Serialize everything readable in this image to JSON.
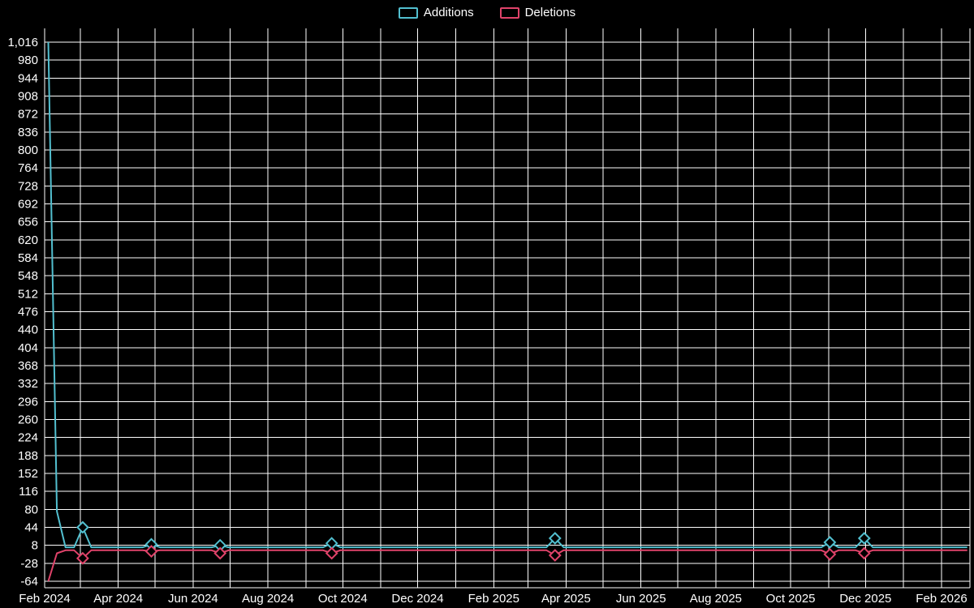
{
  "chart_data": {
    "type": "line",
    "title": "",
    "xlabel": "",
    "ylabel": "",
    "legend_position": "top-center",
    "background_color": "#000000",
    "grid_color": "#ffffff",
    "text_color": "#ffffff",
    "grid": "on",
    "x_gridlines": "monthly",
    "ylim": [
      -77,
      1044
    ],
    "y_ticks": [
      1016,
      980,
      944,
      908,
      872,
      836,
      800,
      764,
      728,
      692,
      656,
      620,
      584,
      548,
      512,
      476,
      440,
      404,
      368,
      332,
      296,
      260,
      224,
      188,
      152,
      116,
      80,
      44,
      8,
      -28,
      -64
    ],
    "x_ticks": [
      {
        "label": "Feb 2024",
        "date": "2024-02-01"
      },
      {
        "label": "Apr 2024",
        "date": "2024-04-01"
      },
      {
        "label": "Jun 2024",
        "date": "2024-06-01"
      },
      {
        "label": "Aug 2024",
        "date": "2024-08-01"
      },
      {
        "label": "Oct 2024",
        "date": "2024-10-01"
      },
      {
        "label": "Dec 2024",
        "date": "2024-12-01"
      },
      {
        "label": "Feb 2025",
        "date": "2025-02-01"
      },
      {
        "label": "Apr 2025",
        "date": "2025-04-01"
      },
      {
        "label": "Jun 2025",
        "date": "2025-06-01"
      },
      {
        "label": "Aug 2025",
        "date": "2025-08-01"
      },
      {
        "label": "Oct 2025",
        "date": "2025-10-01"
      },
      {
        "label": "Dec 2025",
        "date": "2025-12-01"
      },
      {
        "label": "Feb 2026",
        "date": "2026-02-01"
      }
    ],
    "series": [
      {
        "name": "Additions",
        "color": "#52bfcf",
        "points": [
          {
            "d": "2024-02-04",
            "v": 1016
          },
          {
            "d": "2024-02-11",
            "v": 76
          },
          {
            "d": "2024-02-18",
            "v": 4
          },
          {
            "d": "2024-02-25",
            "v": 4
          },
          {
            "d": "2024-03-03",
            "v": 44,
            "m": true
          },
          {
            "d": "2024-03-10",
            "v": 4
          },
          {
            "d": "2024-04-21",
            "v": 4
          },
          {
            "d": "2024-04-28",
            "v": 10,
            "m": true
          },
          {
            "d": "2024-05-05",
            "v": 4
          },
          {
            "d": "2024-06-16",
            "v": 4
          },
          {
            "d": "2024-06-23",
            "v": 8,
            "m": true
          },
          {
            "d": "2024-06-30",
            "v": 4
          },
          {
            "d": "2024-09-15",
            "v": 4
          },
          {
            "d": "2024-09-22",
            "v": 12,
            "m": true
          },
          {
            "d": "2024-09-29",
            "v": 4
          },
          {
            "d": "2025-03-16",
            "v": 4
          },
          {
            "d": "2025-03-23",
            "v": 22,
            "m": true
          },
          {
            "d": "2025-03-30",
            "v": 4
          },
          {
            "d": "2025-10-26",
            "v": 4
          },
          {
            "d": "2025-11-02",
            "v": 14,
            "m": true
          },
          {
            "d": "2025-11-09",
            "v": 4
          },
          {
            "d": "2025-11-23",
            "v": 4
          },
          {
            "d": "2025-11-30",
            "v": 22,
            "m": true
          },
          {
            "d": "2025-12-07",
            "v": 4
          },
          {
            "d": "2026-02-22",
            "v": 4
          }
        ]
      },
      {
        "name": "Deletions",
        "color": "#e0436a",
        "points": [
          {
            "d": "2024-02-04",
            "v": -64
          },
          {
            "d": "2024-02-11",
            "v": -8
          },
          {
            "d": "2024-02-18",
            "v": -2
          },
          {
            "d": "2024-02-25",
            "v": -2
          },
          {
            "d": "2024-03-03",
            "v": -18,
            "m": true
          },
          {
            "d": "2024-03-10",
            "v": -2
          },
          {
            "d": "2024-04-21",
            "v": -2
          },
          {
            "d": "2024-04-28",
            "v": -4,
            "m": true
          },
          {
            "d": "2024-05-05",
            "v": -2
          },
          {
            "d": "2024-06-16",
            "v": -2
          },
          {
            "d": "2024-06-23",
            "v": -8,
            "m": true
          },
          {
            "d": "2024-06-30",
            "v": -2
          },
          {
            "d": "2024-09-15",
            "v": -2
          },
          {
            "d": "2024-09-22",
            "v": -8,
            "m": true
          },
          {
            "d": "2024-09-29",
            "v": -2
          },
          {
            "d": "2025-03-16",
            "v": -2
          },
          {
            "d": "2025-03-23",
            "v": -12,
            "m": true
          },
          {
            "d": "2025-03-30",
            "v": -2
          },
          {
            "d": "2025-10-26",
            "v": -2
          },
          {
            "d": "2025-11-02",
            "v": -10,
            "m": true
          },
          {
            "d": "2025-11-09",
            "v": -2
          },
          {
            "d": "2025-11-23",
            "v": -2
          },
          {
            "d": "2025-11-30",
            "v": -8,
            "m": true
          },
          {
            "d": "2025-12-07",
            "v": -2
          },
          {
            "d": "2026-02-22",
            "v": -2
          }
        ]
      }
    ]
  }
}
